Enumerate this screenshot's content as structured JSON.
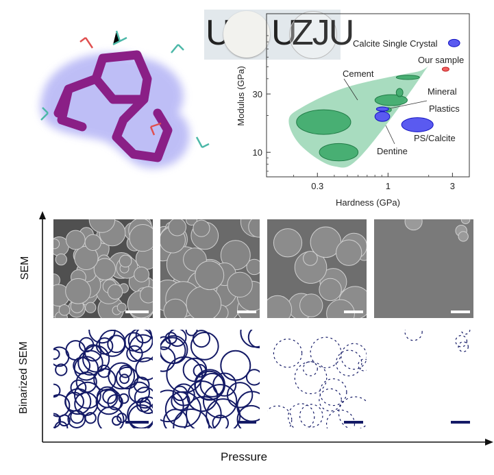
{
  "photo": {
    "letters": [
      "U",
      "U",
      "ZJU"
    ]
  },
  "sem_section": {
    "row_labels": [
      "SEM",
      "Binarized SEM"
    ],
    "x_axis_label": "Pressure",
    "panel_count": 4
  },
  "chart_data": {
    "type": "scatter",
    "xlabel": "Hardness (GPa)",
    "ylabel": "Modulus (GPa)",
    "xscale": "log",
    "yscale": "log",
    "xlim": [
      0.126,
      4.0
    ],
    "ylim": [
      6.3,
      136
    ],
    "xticks": [
      {
        "value": 0.3,
        "label": "0.3"
      },
      {
        "value": 1,
        "label": "1"
      },
      {
        "value": 3,
        "label": "3"
      }
    ],
    "yticks": [
      {
        "value": 10,
        "label": "10"
      },
      {
        "value": 30,
        "label": "30"
      }
    ],
    "grid": false,
    "colors": {
      "cement": "#a8dcbf",
      "mineral": "#3daa6a",
      "blue": "#5a5af0",
      "red": "#f06060"
    },
    "regions": [
      {
        "name": "Cement",
        "kind": "envelope",
        "points": [
          [
            0.184,
            17.9
          ],
          [
            0.229,
            11.2
          ],
          [
            0.397,
            7.7
          ],
          [
            0.634,
            9.4
          ],
          [
            1.82,
            44.3
          ],
          [
            1.61,
            45.4
          ],
          [
            0.5,
            34.2
          ],
          [
            0.229,
            23.2
          ]
        ]
      }
    ],
    "ellipses": [
      {
        "group": "Mineral",
        "hardness": [
          0.21,
          0.53
        ],
        "modulus": [
          14.0,
          22.3
        ]
      },
      {
        "group": "Mineral",
        "hardness": [
          0.31,
          0.6
        ],
        "modulus": [
          8.5,
          11.8
        ]
      },
      {
        "group": "Mineral",
        "hardness": [
          0.8,
          1.39
        ],
        "modulus": [
          24.1,
          29.6
        ]
      },
      {
        "group": "Mineral",
        "hardness": [
          1.15,
          1.29
        ],
        "modulus": [
          28.5,
          33.3
        ]
      },
      {
        "group": "Mineral",
        "hardness": [
          1.15,
          1.71
        ],
        "modulus": [
          39.4,
          42.7
        ]
      },
      {
        "group": "Mineral",
        "hardness": [
          0.96,
          1.06
        ],
        "modulus": [
          21.4,
          23.2
        ]
      },
      {
        "group": "Plastics",
        "hardness": [
          0.82,
          1.01
        ],
        "modulus": [
          21.7,
          23.5
        ]
      },
      {
        "group": "Dentine",
        "hardness": [
          0.8,
          1.03
        ],
        "modulus": [
          17.9,
          21.5
        ]
      },
      {
        "group": "PS/Calcite",
        "hardness": [
          1.26,
          2.16
        ],
        "modulus": [
          14.7,
          19.2
        ]
      },
      {
        "group": "Our sample",
        "hardness": [
          2.52,
          2.83
        ],
        "modulus": [
          46.0,
          49.7
        ]
      },
      {
        "group": "Calcite Single Crystal",
        "hardness": [
          2.8,
          3.4
        ],
        "modulus": [
          73,
          84
        ]
      }
    ],
    "labels": {
      "cement": "Cement",
      "mineral": "Mineral",
      "plastics": "Plastics",
      "dentine": "Dentine",
      "ps_calcite": "PS/Calcite",
      "our_sample": "Our sample",
      "calcite": "Calcite Single Crystal"
    }
  }
}
